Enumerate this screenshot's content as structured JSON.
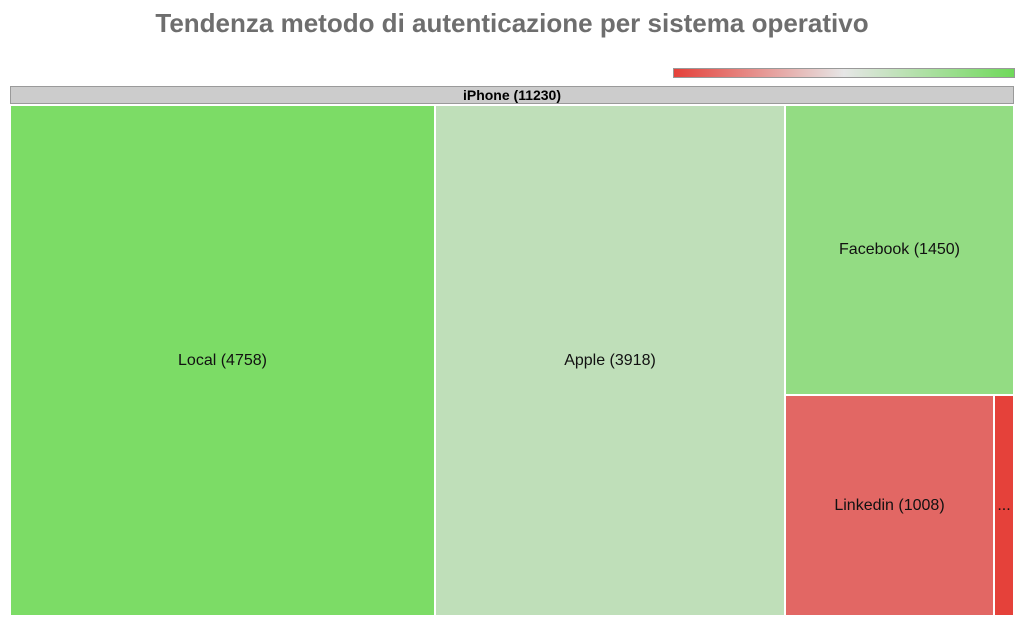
{
  "title": "Tendenza metodo di autenticazione per sistema operativo",
  "scale": {
    "low_color": "#e5413a",
    "mid_color": "#e6e6e6",
    "high_color": "#6fd95a"
  },
  "header": {
    "label": "iPhone (11230)"
  },
  "chart_data": {
    "type": "treemap",
    "title": "Tendenza metodo di autenticazione per sistema operativo",
    "root": {
      "name": "iPhone",
      "value": 11230
    },
    "nodes": [
      {
        "name": "Local",
        "value": 4758,
        "label": "Local (4758)",
        "color": "#7cdc66"
      },
      {
        "name": "Apple",
        "value": 3918,
        "label": "Apple (3918)",
        "color": "#bfdfb9"
      },
      {
        "name": "Facebook",
        "value": 1450,
        "label": "Facebook (1450)",
        "color": "#93dc83"
      },
      {
        "name": "Linkedin",
        "value": 1008,
        "label": "Linkedin (1008)",
        "color": "#e26764"
      },
      {
        "name": "",
        "value": 96,
        "label": "...",
        "color": "#e5413a"
      }
    ]
  }
}
